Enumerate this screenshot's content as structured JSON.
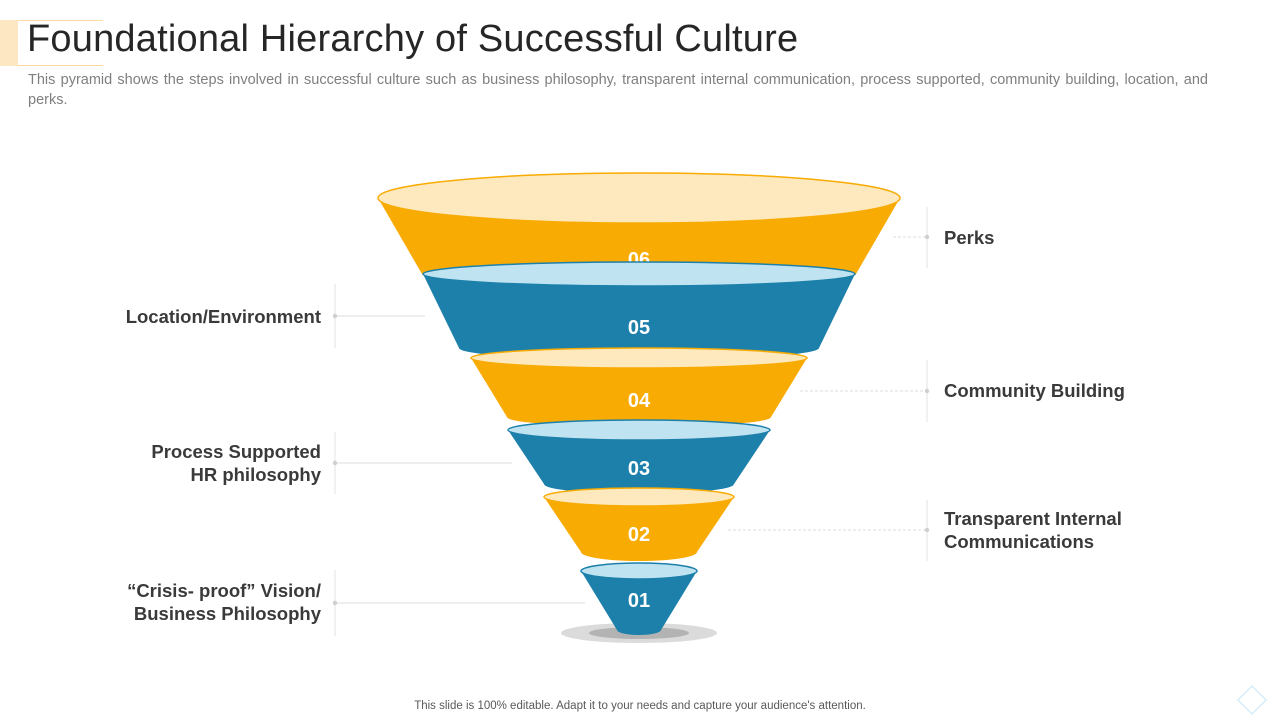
{
  "title": "Foundational Hierarchy of Successful Culture",
  "subtitle": "This pyramid shows the steps involved in successful culture such as business philosophy, transparent internal communication, process supported, community building, location, and perks.",
  "colors": {
    "yellow": "#f8ab03",
    "yellow_top": "#fde9bd",
    "blue": "#1d80aa",
    "blue_top": "#bfe3f1",
    "label_text": "#3a3a3a",
    "connector": "#d9d9d9"
  },
  "levels": [
    {
      "number": "06",
      "label": "Perks",
      "side": "right",
      "color": "yellow"
    },
    {
      "number": "05",
      "label": "Location/Environment",
      "side": "left",
      "color": "blue"
    },
    {
      "number": "04",
      "label": "Community Building",
      "side": "right",
      "color": "yellow"
    },
    {
      "number": "03",
      "label": "Process Supported\nHR philosophy",
      "side": "left",
      "color": "blue"
    },
    {
      "number": "02",
      "label": "Transparent Internal\nCommunications",
      "side": "right",
      "color": "yellow"
    },
    {
      "number": "01",
      "label": "“Crisis- proof” Vision/\nBusiness Philosophy",
      "side": "left",
      "color": "blue"
    }
  ],
  "footer": "This slide is 100% editable. Adapt it to your needs and capture your audience's attention.",
  "corner_icon": "diamond-icon"
}
